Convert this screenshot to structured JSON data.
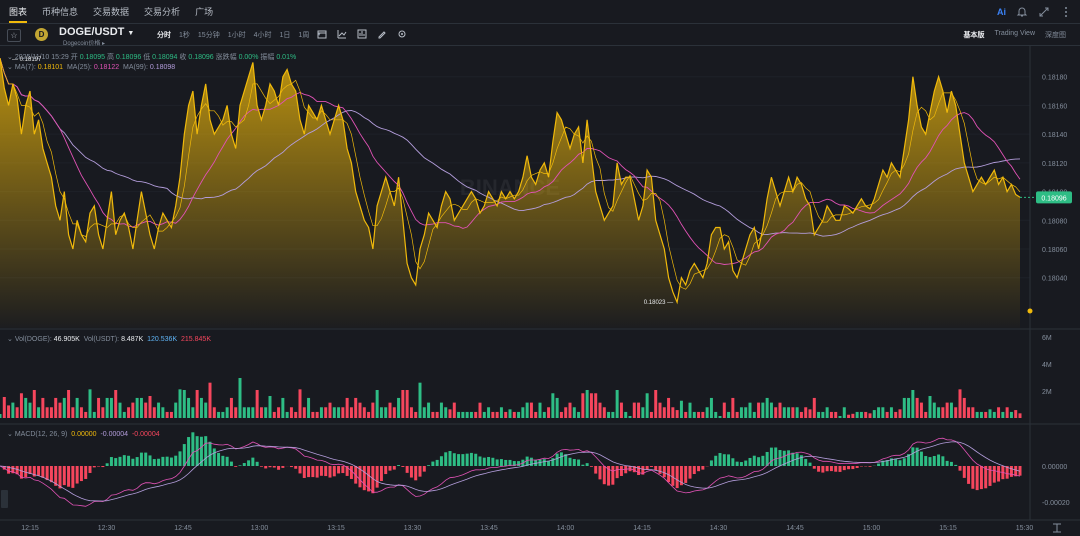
{
  "topnav": {
    "tabs": [
      "图表",
      "币种信息",
      "交易数据",
      "交易分析",
      "广场"
    ],
    "ai_label": "Ai"
  },
  "toolbar": {
    "symbol": "DOGE/USDT",
    "subtitle": "Dogecoin价格 ▸",
    "intervals": [
      "分时",
      "1秒",
      "15分钟",
      "1小时",
      "4小时",
      "1日",
      "1周"
    ],
    "active_interval": "分时",
    "views": [
      "基本版",
      "Trading View",
      "深度图"
    ],
    "active_view": "基本版"
  },
  "ohlc": {
    "date": "2025/11/10 15:29",
    "open_label": "开",
    "open": "0.18095",
    "high_label": "高",
    "high": "0.18096",
    "low_label": "低",
    "low": "0.18094",
    "close_label": "收",
    "close": "0.18096",
    "change_label": "涨跌幅",
    "change": "0.00%",
    "amp_label": "振幅",
    "amp": "0.01%"
  },
  "ma": {
    "ma7_label": "MA(7):",
    "ma7": "0.18101",
    "ma25_label": "MA(25):",
    "ma25": "0.18122",
    "ma99_label": "MA(99):",
    "ma99": "0.18098"
  },
  "volume": {
    "label": "Vol(DOGE):",
    "value": "46.905K",
    "label2": "Vol(USDT):",
    "value2": "8.487K",
    "ma1": "120.536K",
    "ma2": "215.845K",
    "ticks": [
      "6M",
      "4M",
      "2M"
    ]
  },
  "macd": {
    "label": "MACD(12, 26, 9)",
    "dif": "0.00000",
    "dea": "-0.00004",
    "hist": "-0.00004",
    "ticks": [
      "0.00000",
      "-0.00020"
    ]
  },
  "price_axis": [
    "0.18180",
    "0.18160",
    "0.18140",
    "0.18120",
    "0.18100",
    "0.18080",
    "0.18060",
    "0.18040"
  ],
  "current_price": "0.18096",
  "high_marker": "0.18197",
  "low_marker": "0.18023",
  "watermark": "BINANCE",
  "time_axis": [
    "12:15",
    "12:30",
    "12:45",
    "13:00",
    "13:15",
    "13:30",
    "13:45",
    "14:00",
    "14:15",
    "14:30",
    "14:45",
    "15:00",
    "15:15",
    "15:30"
  ],
  "colors": {
    "up": "#2ebd85",
    "down": "#f6465d",
    "line": "#f0b90b",
    "ma25": "#e052b5",
    "ma99": "#b39ddb",
    "bg": "#181a20"
  },
  "chart_data": {
    "type": "area",
    "x_start": "12:10",
    "x_end": "15:29",
    "price": [
      0.18193,
      0.18172,
      0.1816,
      0.18175,
      0.18165,
      0.1814,
      0.1816,
      0.1817,
      0.1814,
      0.1815,
      0.1813,
      0.1812,
      0.1811,
      0.1809,
      0.1808,
      0.181,
      0.1807,
      0.1806,
      0.1808,
      0.1807,
      0.18065,
      0.18085,
      0.1809,
      0.1807,
      0.1806,
      0.1808,
      0.181,
      0.1807,
      0.1808,
      0.18085,
      0.18075,
      0.1806,
      0.1808,
      0.181,
      0.18085,
      0.1807,
      0.1806,
      0.18075,
      0.18085,
      0.1808,
      0.18075,
      0.1809,
      0.1811,
      0.1814,
      0.1816,
      0.1817,
      0.1814,
      0.1816,
      0.18175,
      0.1815,
      0.1814,
      0.18145,
      0.1815,
      0.1816,
      0.1814,
      0.1813,
      0.1816,
      0.1817,
      0.1818,
      0.1819,
      0.1816,
      0.1815,
      0.1816,
      0.18175,
      0.1817,
      0.1816,
      0.1818,
      0.18185,
      0.18175,
      0.1817,
      0.1815,
      0.1814,
      0.1816,
      0.18155,
      0.1815,
      0.1816,
      0.1815,
      0.1814,
      0.1815,
      0.1816,
      0.1815,
      0.1813,
      0.1812,
      0.181,
      0.1809,
      0.1808,
      0.18075,
      0.1806,
      0.1809,
      0.181,
      0.1811,
      0.181,
      0.1809,
      0.1811,
      0.1808,
      0.1805,
      0.1804,
      0.18035,
      0.1806,
      0.1807,
      0.18085,
      0.1808,
      0.18075,
      0.1809,
      0.181,
      0.18095,
      0.1808,
      0.18085,
      0.1809,
      0.18095,
      0.181,
      0.18095,
      0.18085,
      0.1809,
      0.181,
      0.18095,
      0.1809,
      0.181,
      0.18095,
      0.181,
      0.18095,
      0.181,
      0.1811,
      0.18125,
      0.1811,
      0.18105,
      0.18115,
      0.1812,
      0.1811,
      0.18135,
      0.18155,
      0.1815,
      0.1814,
      0.1813,
      0.1814,
      0.18145,
      0.1812,
      0.1815,
      0.18125,
      0.181,
      0.1809,
      0.1808,
      0.18085,
      0.1809,
      0.1812,
      0.18105,
      0.1811,
      0.1811,
      0.18095,
      0.1808,
      0.1809,
      0.18115,
      0.1811,
      0.1808,
      0.1807,
      0.1806,
      0.1804,
      0.1803,
      0.18023,
      0.1804,
      0.18035,
      0.18045,
      0.1805,
      0.18045,
      0.1804,
      0.1805,
      0.1807,
      0.18075,
      0.18075,
      0.1806,
      0.18065,
      0.18045,
      0.1804,
      0.1805,
      0.1806,
      0.1807,
      0.18075,
      0.1806,
      0.18075,
      0.18095,
      0.1811,
      0.181,
      0.1809,
      0.181,
      0.1811,
      0.181,
      0.1811,
      0.18105,
      0.18095,
      0.1809,
      0.1807,
      0.18075,
      0.1808,
      0.1809,
      0.18085,
      0.1808,
      0.1808,
      0.1809,
      0.18088,
      0.18085,
      0.1809,
      0.18095,
      0.1809,
      0.18088,
      0.18095,
      0.18105,
      0.18115,
      0.1811,
      0.1812,
      0.18115,
      0.1811,
      0.1813,
      0.1815,
      0.1818,
      0.1816,
      0.18145,
      0.1814,
      0.18155,
      0.1817,
      0.1818,
      0.1817,
      0.18155,
      0.1817,
      0.1816,
      0.1814,
      0.1812,
      0.1811,
      0.181,
      0.18105,
      0.1811,
      0.18105,
      0.1811,
      0.18115,
      0.18105,
      0.1811,
      0.181,
      0.18105,
      0.18098,
      0.18096
    ],
    "ylim": [
      0.18005,
      0.182
    ]
  }
}
